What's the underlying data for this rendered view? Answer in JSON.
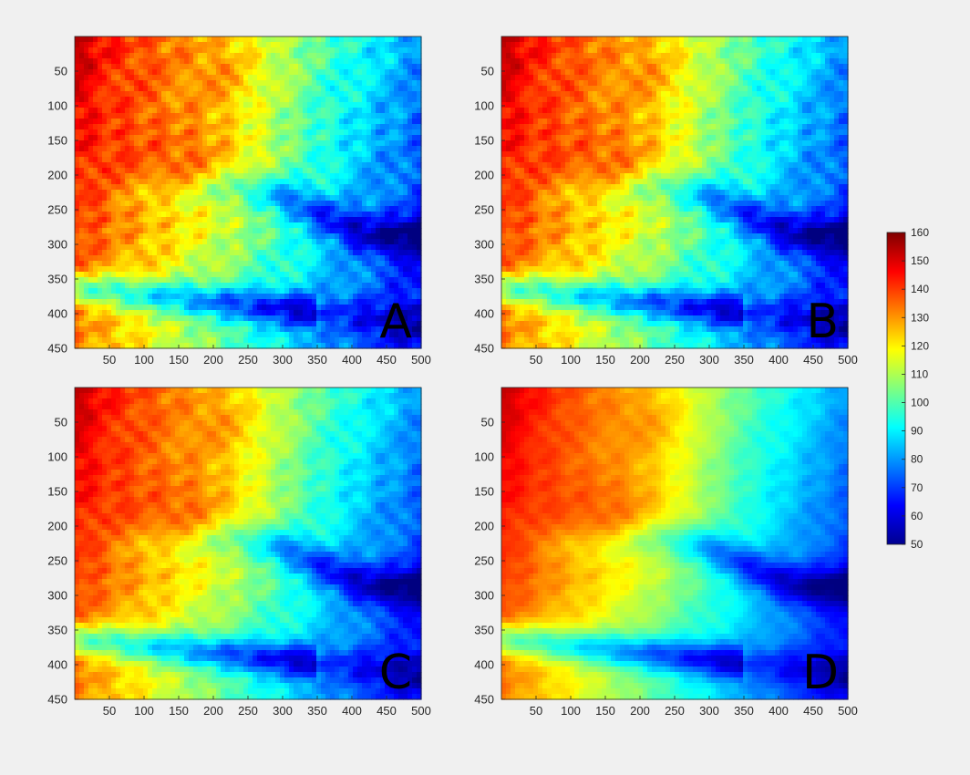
{
  "chart_data": {
    "type": "heatmap",
    "colormap": "jet",
    "panels": [
      {
        "label": "A",
        "smoothness": 1.0
      },
      {
        "label": "B",
        "smoothness": 1.1
      },
      {
        "label": "C",
        "smoothness": 1.4
      },
      {
        "label": "D",
        "smoothness": 2.4
      }
    ],
    "x_ticks": [
      50,
      100,
      150,
      200,
      250,
      300,
      350,
      400,
      450,
      500
    ],
    "y_ticks": [
      50,
      100,
      150,
      200,
      250,
      300,
      350,
      400,
      450
    ],
    "xlim": [
      0,
      500
    ],
    "ylim": [
      0,
      450
    ],
    "y_direction": "reversed",
    "colorbar": {
      "ticks": [
        50,
        60,
        70,
        80,
        90,
        100,
        110,
        120,
        130,
        140,
        150,
        160
      ],
      "range": [
        50,
        160
      ],
      "placement": "right"
    }
  }
}
